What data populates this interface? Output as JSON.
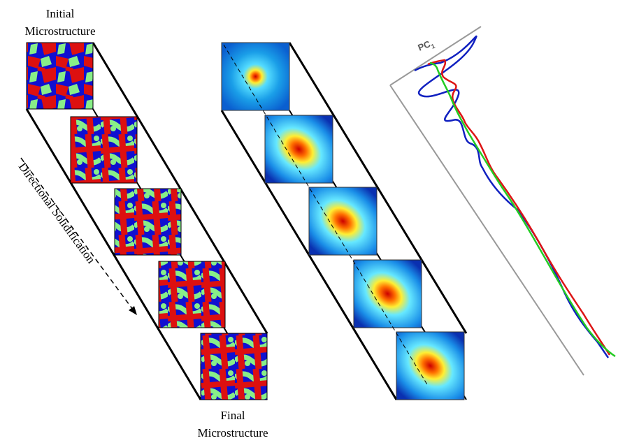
{
  "labels": {
    "initial_line1": "Initial",
    "initial_line2": "Microstructure",
    "final_line1": "Final",
    "final_line2": "Microstructure",
    "process": "Directional Solidification",
    "axis": "PC",
    "axis_subscript": "1"
  },
  "colors": {
    "phase_blue": "#1010d0",
    "phase_red": "#dd1010",
    "phase_green": "#88ee88",
    "curve_blue": "#1020c0",
    "curve_red": "#dd1515",
    "curve_green": "#22cc22",
    "axis_gray": "#999999"
  },
  "snapshot_count": 5
}
